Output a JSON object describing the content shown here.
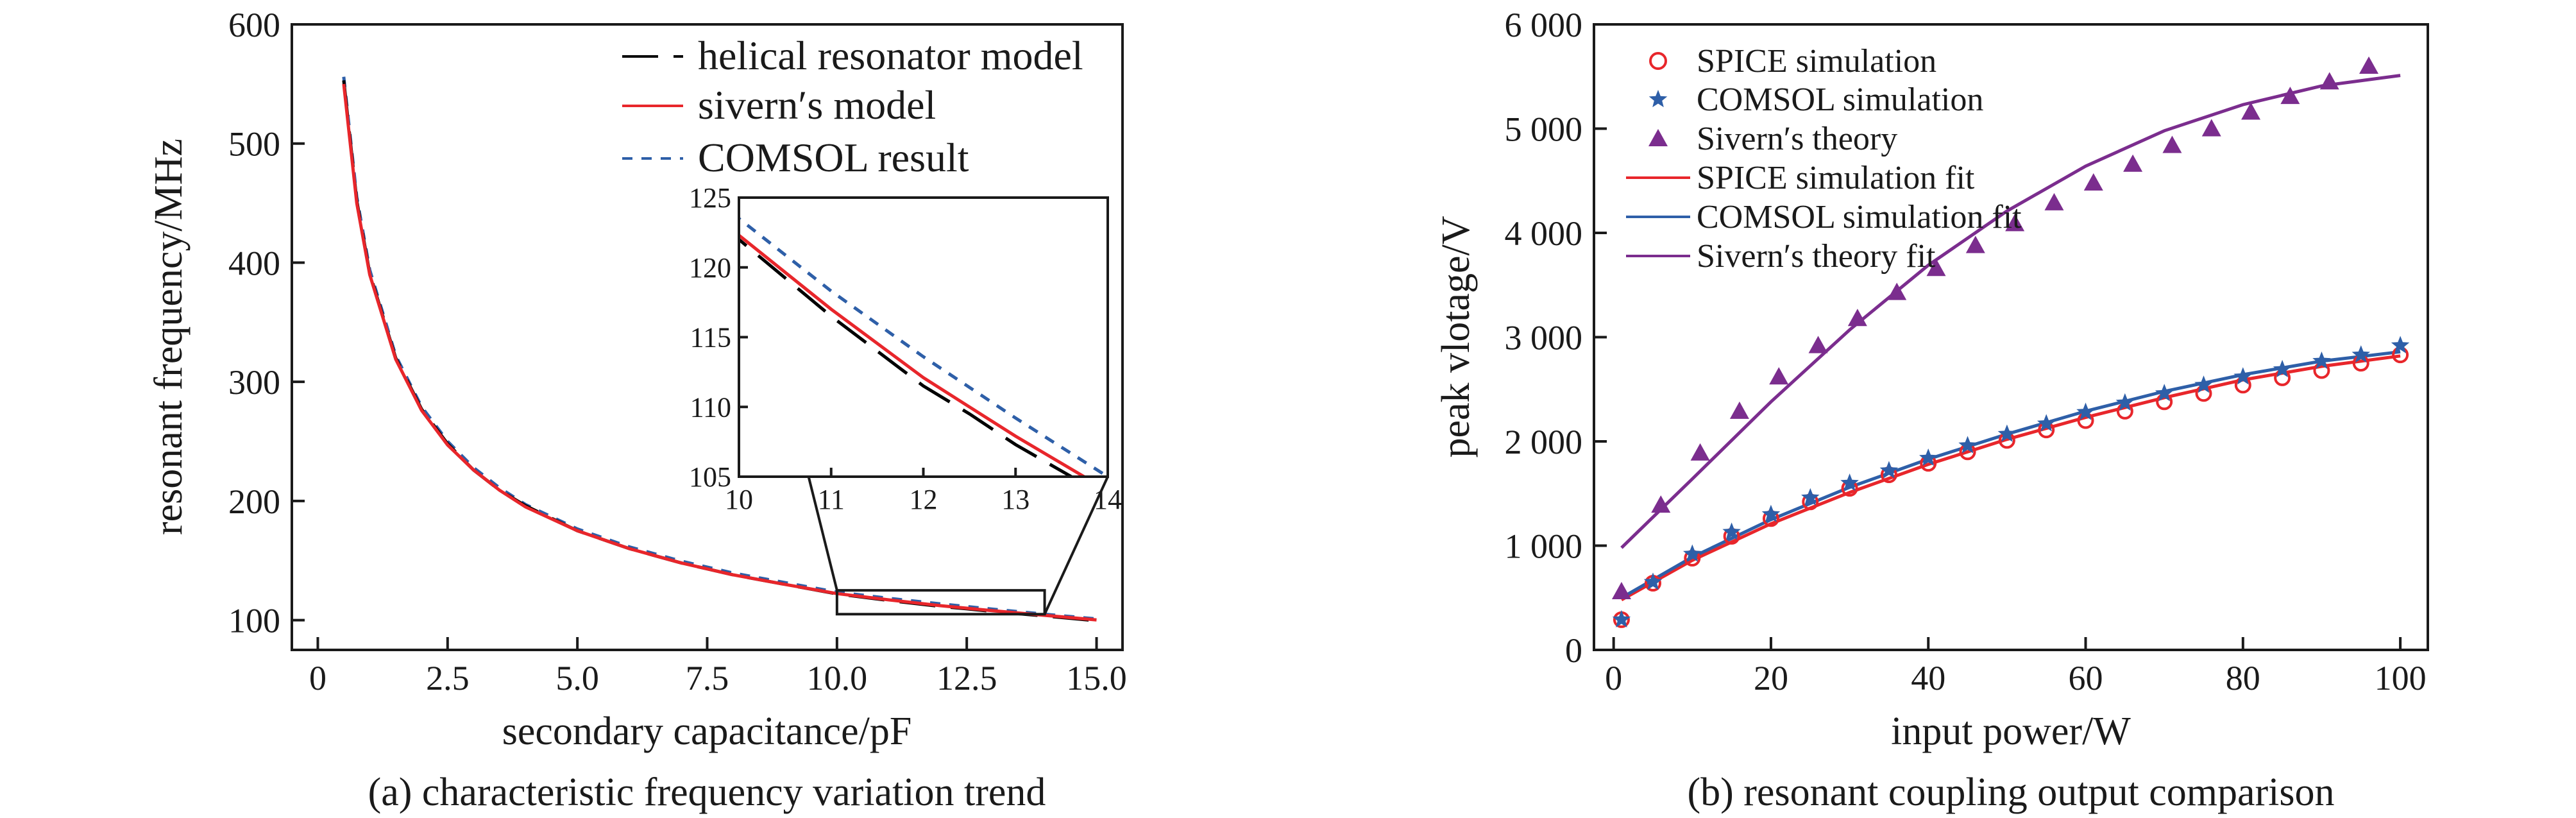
{
  "chart_data": [
    {
      "id": "a",
      "type": "line",
      "caption": "(a) characteristic frequency variation trend",
      "xlabel": "secondary capacitance/pF",
      "ylabel": "resonant frequency/MHz",
      "xlim": [
        -0.5,
        15.5
      ],
      "ylim": [
        75,
        600
      ],
      "xticks": [
        0,
        2.5,
        5.0,
        7.5,
        10.0,
        12.5,
        15.0
      ],
      "xtick_labels": [
        "0",
        "2.5",
        "5.0",
        "7.5",
        "10.0",
        "12.5",
        "15.0"
      ],
      "yticks": [
        100,
        200,
        300,
        400,
        500,
        600
      ],
      "ytick_labels": [
        "100",
        "200",
        "300",
        "400",
        "500",
        "600"
      ],
      "legend_position": "top-right",
      "series": [
        {
          "name": "helical resonator model",
          "color": "#000000",
          "style": "long-dash",
          "x": [
            0.5,
            0.75,
            1.0,
            1.5,
            2.0,
            2.5,
            3.0,
            3.5,
            4.0,
            5.0,
            6.0,
            7.0,
            7.5,
            8.0,
            9.0,
            10.0,
            11.0,
            12.0,
            12.5,
            13.0,
            14.0,
            15.0
          ],
          "y": [
            553,
            452,
            391,
            320,
            277,
            248,
            226,
            209,
            196,
            175,
            160,
            148,
            143,
            138,
            130,
            122.0,
            116.5,
            111.5,
            109.5,
            107.3,
            103.5,
            99.5
          ]
        },
        {
          "name": "sivern′s model",
          "color": "#e8262b",
          "style": "solid",
          "x": [
            0.5,
            0.75,
            1.0,
            1.5,
            2.0,
            2.5,
            3.0,
            3.5,
            4.0,
            5.0,
            6.0,
            7.0,
            7.5,
            8.0,
            9.0,
            10.0,
            11.0,
            12.0,
            12.5,
            13.0,
            14.0,
            15.0
          ],
          "y": [
            550,
            450,
            390,
            319,
            276,
            247,
            226,
            209,
            195,
            175,
            160,
            148,
            143,
            138,
            130,
            122.3,
            117.0,
            112.1,
            110.0,
            107.9,
            104.0,
            100.2
          ]
        },
        {
          "name": "COMSOL result",
          "color": "#2e5fa8",
          "style": "short-dash",
          "x": [
            0.5,
            0.75,
            1.0,
            1.5,
            2.0,
            2.5,
            3.0,
            3.5,
            4.0,
            5.0,
            6.0,
            7.0,
            7.5,
            8.0,
            9.0,
            10.0,
            11.0,
            12.0,
            12.5,
            13.0,
            14.0,
            15.0
          ],
          "y": [
            556,
            455,
            394,
            322,
            279,
            250,
            228,
            211,
            197,
            176.5,
            161.5,
            149.5,
            144.5,
            139.5,
            131.5,
            123.5,
            118.3,
            113.6,
            111.4,
            109.2,
            105.0,
            101.0
          ]
        }
      ],
      "zoom_box": {
        "x": [
          10,
          14
        ],
        "y": [
          105,
          125
        ]
      },
      "inset": {
        "xlim": [
          10,
          14
        ],
        "ylim": [
          105,
          125
        ],
        "xticks": [
          10,
          11,
          12,
          13,
          14
        ],
        "xtick_labels": [
          "10",
          "11",
          "12",
          "13",
          "14"
        ],
        "yticks": [
          105,
          110,
          115,
          120,
          125
        ],
        "ytick_labels": [
          "105",
          "110",
          "115",
          "120",
          "125"
        ]
      }
    },
    {
      "id": "b",
      "type": "scatter",
      "caption": "(b) resonant coupling output comparison",
      "xlabel": "input power/W",
      "ylabel": "peak vlotage/V",
      "xlim": [
        -2.5,
        103.5
      ],
      "ylim": [
        0,
        6000
      ],
      "xticks": [
        0,
        20,
        40,
        60,
        80,
        100
      ],
      "xtick_labels": [
        "0",
        "20",
        "40",
        "60",
        "80",
        "100"
      ],
      "yticks": [
        0,
        1000,
        2000,
        3000,
        4000,
        5000,
        6000
      ],
      "ytick_labels": [
        "0",
        "1 000",
        "2 000",
        "3 000",
        "4 000",
        "5 000",
        "6 000"
      ],
      "legend_position": "top-left",
      "scatter_series": [
        {
          "name": "SPICE simulation",
          "marker": "circle",
          "color": "#e8262b",
          "x": [
            1,
            5,
            10,
            15,
            20,
            25,
            30,
            35,
            40,
            45,
            50,
            55,
            60,
            65,
            70,
            75,
            80,
            85,
            90,
            95,
            100
          ],
          "y": [
            290,
            640,
            880,
            1090,
            1260,
            1420,
            1550,
            1680,
            1790,
            1900,
            2010,
            2110,
            2200,
            2290,
            2380,
            2460,
            2540,
            2610,
            2680,
            2750,
            2830
          ]
        },
        {
          "name": "COMSOL simulation",
          "marker": "star",
          "color": "#2e5fa8",
          "x": [
            1,
            5,
            10,
            15,
            20,
            25,
            30,
            35,
            40,
            45,
            50,
            55,
            60,
            65,
            70,
            75,
            80,
            85,
            90,
            95,
            100
          ],
          "y": [
            290,
            650,
            920,
            1130,
            1300,
            1460,
            1600,
            1720,
            1840,
            1960,
            2070,
            2170,
            2280,
            2370,
            2460,
            2540,
            2620,
            2690,
            2770,
            2830,
            2920
          ]
        },
        {
          "name": "Sivern′s theory",
          "marker": "triangle",
          "color": "#7b2d8e",
          "x": [
            1,
            6,
            11,
            16,
            21,
            26,
            31,
            36,
            41,
            46,
            51,
            56,
            61,
            66,
            71,
            76,
            81,
            86,
            91,
            96
          ],
          "y": [
            560,
            1390,
            1890,
            2290,
            2620,
            2920,
            3180,
            3430,
            3660,
            3880,
            4090,
            4290,
            4480,
            4660,
            4840,
            5000,
            5160,
            5310,
            5450,
            5600
          ]
        }
      ],
      "fit_series": [
        {
          "name": "SPICE simulation fit",
          "color": "#e8262b",
          "x": [
            1,
            10,
            20,
            30,
            40,
            50,
            60,
            70,
            80,
            90,
            100
          ],
          "y": [
            480,
            860,
            1210,
            1510,
            1780,
            2020,
            2230,
            2420,
            2590,
            2720,
            2820
          ]
        },
        {
          "name": "COMSOL simulation fit",
          "color": "#2e5fa8",
          "x": [
            1,
            10,
            20,
            30,
            40,
            50,
            60,
            70,
            80,
            90,
            100
          ],
          "y": [
            500,
            890,
            1250,
            1560,
            1830,
            2070,
            2290,
            2480,
            2640,
            2770,
            2860
          ]
        },
        {
          "name": "Sivern′s theory fit",
          "color": "#7b2d8e",
          "x": [
            1,
            10,
            20,
            30,
            40,
            50,
            60,
            70,
            80,
            90,
            100
          ],
          "y": [
            980,
            1640,
            2380,
            3070,
            3690,
            4210,
            4640,
            4980,
            5230,
            5410,
            5510
          ]
        }
      ]
    }
  ]
}
